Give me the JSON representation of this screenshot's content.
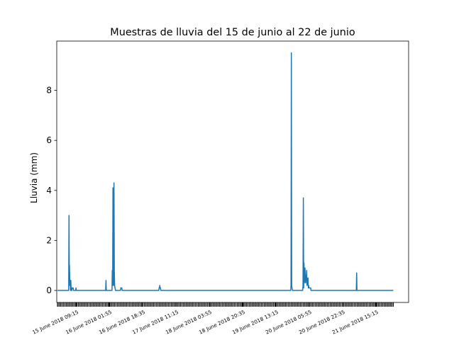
{
  "chart_data": {
    "type": "line",
    "title": "Muestras de lluvia del 15 de junio al 22 de junio",
    "xlabel": "",
    "ylabel": "Lluvia (mm)",
    "xlim": [
      "2018-06-14T23:37",
      "2018-06-22T07:40"
    ],
    "ylim": [
      -0.48,
      9.97
    ],
    "yticks": [
      0,
      2,
      4,
      6,
      8
    ],
    "xtick_labels": [
      "15 June 2018 09:15",
      "16 June 2018 01:55",
      "16 June 2018 18:35",
      "17 June 2018 11:15",
      "18 June 2018 03:55",
      "18 June 2018 20:35",
      "19 June 2018 13:15",
      "20 June 2018 05:55",
      "20 June 2018 22:35",
      "21 June 2018 15:15"
    ],
    "xtick_values": [
      "2018-06-15T09:15",
      "2018-06-16T01:55",
      "2018-06-16T18:35",
      "2018-06-17T11:15",
      "2018-06-18T03:55",
      "2018-06-18T20:35",
      "2018-06-19T13:15",
      "2018-06-20T05:55",
      "2018-06-20T22:35",
      "2018-06-21T15:15"
    ],
    "grid": false,
    "line_color": "#1f77b4",
    "series": [
      {
        "x": [
          "2018-06-15T00:00",
          "2018-06-15T05:35",
          "2018-06-15T05:45",
          "2018-06-15T05:55",
          "2018-06-15T06:00",
          "2018-06-15T06:10",
          "2018-06-15T06:20",
          "2018-06-15T06:30",
          "2018-06-15T06:40",
          "2018-06-15T06:50",
          "2018-06-15T07:00",
          "2018-06-15T07:10",
          "2018-06-15T07:20",
          "2018-06-15T07:40",
          "2018-06-15T07:50",
          "2018-06-15T08:00",
          "2018-06-15T09:05",
          "2018-06-15T09:15",
          "2018-06-15T09:25",
          "2018-06-16T00:05",
          "2018-06-16T00:15",
          "2018-06-16T00:25",
          "2018-06-16T03:15",
          "2018-06-16T03:25",
          "2018-06-16T03:35",
          "2018-06-16T03:45",
          "2018-06-16T03:55",
          "2018-06-16T04:05",
          "2018-06-16T04:15",
          "2018-06-16T04:25",
          "2018-06-16T04:35",
          "2018-06-16T04:45",
          "2018-06-16T05:00",
          "2018-06-16T07:30",
          "2018-06-16T07:40",
          "2018-06-16T08:10",
          "2018-06-16T08:20",
          "2018-06-17T02:40",
          "2018-06-17T02:50",
          "2018-06-17T03:00",
          "2018-06-17T03:10",
          "2018-06-17T03:20",
          "2018-06-17T03:30",
          "2018-06-17T03:40",
          "2018-06-19T20:40",
          "2018-06-19T20:50",
          "2018-06-19T21:00",
          "2018-06-19T21:10",
          "2018-06-19T21:20",
          "2018-06-19T21:35",
          "2018-06-20T02:40",
          "2018-06-20T02:50",
          "2018-06-20T03:00",
          "2018-06-20T03:10",
          "2018-06-20T03:20",
          "2018-06-20T03:30",
          "2018-06-20T03:40",
          "2018-06-20T03:50",
          "2018-06-20T04:00",
          "2018-06-20T04:10",
          "2018-06-20T04:20",
          "2018-06-20T04:30",
          "2018-06-20T04:40",
          "2018-06-20T04:50",
          "2018-06-20T05:00",
          "2018-06-20T05:10",
          "2018-06-20T05:20",
          "2018-06-20T05:30",
          "2018-06-20T05:40",
          "2018-06-20T05:50",
          "2018-06-20T06:00",
          "2018-06-20T06:10",
          "2018-06-20T06:20",
          "2018-06-20T06:30",
          "2018-06-20T06:40",
          "2018-06-20T06:50",
          "2018-06-21T05:30",
          "2018-06-21T05:40",
          "2018-06-21T05:50",
          "2018-06-22T00:00"
        ],
        "y": [
          0,
          0,
          3.0,
          0.4,
          1.0,
          0.2,
          0.4,
          0,
          0.4,
          0,
          0.1,
          0,
          0.1,
          0.1,
          0.1,
          0,
          0,
          0.1,
          0,
          0,
          0.4,
          0,
          0,
          0.8,
          0.2,
          4.1,
          4.1,
          0.2,
          4.3,
          0.8,
          0.2,
          0.1,
          0,
          0,
          0.1,
          0.1,
          0,
          0,
          0.1,
          0.1,
          0.2,
          0.1,
          0.1,
          0,
          0,
          0.2,
          9.5,
          0.2,
          0.1,
          0,
          0,
          0.2,
          3.7,
          0.1,
          1.1,
          0.3,
          0.5,
          0.9,
          0.4,
          0.3,
          0.5,
          0.6,
          0.8,
          0.2,
          0.3,
          0.4,
          0.5,
          0.1,
          0.2,
          0.1,
          0.1,
          0.1,
          0.1,
          0.1,
          0.1,
          0,
          0,
          0.7,
          0,
          0
        ]
      }
    ]
  }
}
